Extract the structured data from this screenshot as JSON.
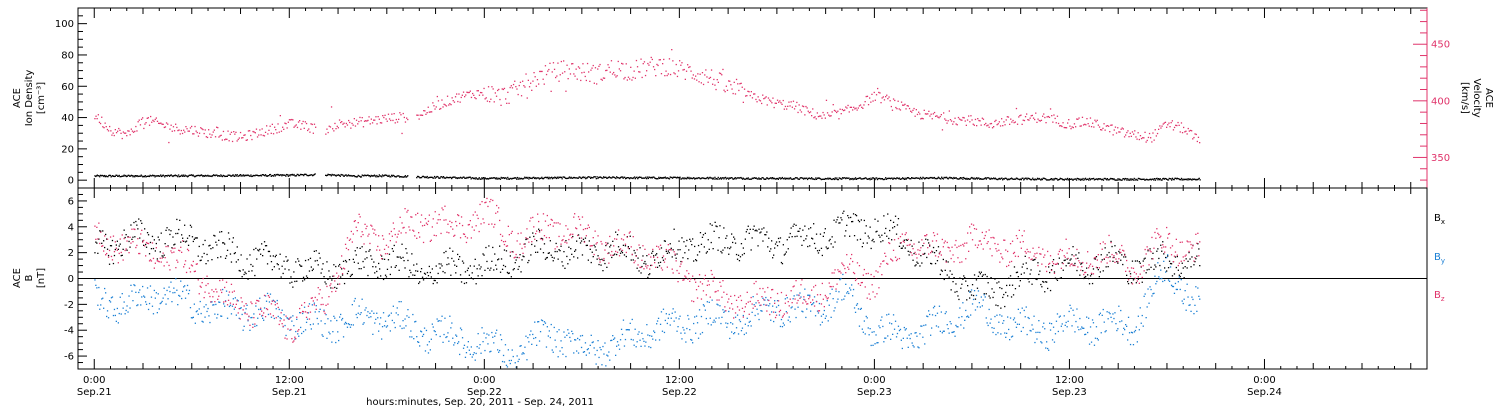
{
  "chart_data": [
    {
      "type": "scatter",
      "panel": "top",
      "left_ylabel": [
        "ACE",
        "Ion Density",
        "[cm⁻³]"
      ],
      "right_ylabel": [
        "ACE",
        "Velocity",
        "[km/s]"
      ],
      "left_ylim": [
        -5,
        110
      ],
      "left_yticks": [
        "0",
        "20",
        "40",
        "60",
        "80",
        "100"
      ],
      "right_ylim": [
        323,
        482
      ],
      "right_yticks": [
        "350",
        "400",
        "450"
      ],
      "series": [
        {
          "axis": "left",
          "color": "#000000",
          "points": [
            [
              0,
              3
            ],
            [
              6,
              3.2
            ],
            [
              12,
              3.5
            ],
            [
              14,
              4.0
            ],
            [
              16,
              3.0
            ],
            [
              18,
              3.2
            ],
            [
              20,
              2.5
            ],
            [
              24,
              1.5
            ],
            [
              30,
              2.0
            ],
            [
              36,
              1.8
            ],
            [
              42,
              1.5
            ],
            [
              48,
              1.3
            ],
            [
              52,
              1.8
            ],
            [
              56,
              1.2
            ],
            [
              60,
              1.0
            ],
            [
              68,
              1.0
            ]
          ]
        },
        {
          "axis": "right",
          "color": "#e0336a",
          "points": [
            [
              0,
              388
            ],
            [
              1,
              375
            ],
            [
              2,
              370
            ],
            [
              3,
              384
            ],
            [
              4,
              380
            ],
            [
              5,
              376
            ],
            [
              6,
              375
            ],
            [
              7,
              372
            ],
            [
              8,
              370
            ],
            [
              9,
              368
            ],
            [
              10,
              372
            ],
            [
              11,
              376
            ],
            [
              12,
              380
            ],
            [
              13,
              378
            ],
            [
              14,
              374
            ],
            [
              15,
              380
            ],
            [
              16,
              381
            ],
            [
              17,
              383
            ],
            [
              18,
              385
            ],
            [
              19,
              386
            ],
            [
              20,
              388
            ],
            [
              21,
              396
            ],
            [
              22,
              402
            ],
            [
              23,
              406
            ],
            [
              24,
              408
            ],
            [
              25,
              404
            ],
            [
              26,
              410
            ],
            [
              27,
              420
            ],
            [
              28,
              425
            ],
            [
              29,
              428
            ],
            [
              30,
              426
            ],
            [
              31,
              424
            ],
            [
              32,
              430
            ],
            [
              33,
              427
            ],
            [
              34,
              430
            ],
            [
              35,
              432
            ],
            [
              36,
              428
            ],
            [
              37,
              425
            ],
            [
              38,
              420
            ],
            [
              39,
              412
            ],
            [
              40,
              406
            ],
            [
              41,
              402
            ],
            [
              42,
              398
            ],
            [
              43,
              396
            ],
            [
              44,
              390
            ],
            [
              45,
              386
            ],
            [
              46,
              390
            ],
            [
              47,
              396
            ],
            [
              48,
              405
            ],
            [
              49,
              400
            ],
            [
              50,
              392
            ],
            [
              51,
              388
            ],
            [
              52,
              386
            ],
            [
              53,
              384
            ],
            [
              54,
              383
            ],
            [
              55,
              380
            ],
            [
              56,
              382
            ],
            [
              57,
              384
            ],
            [
              58,
              386
            ],
            [
              59,
              384
            ],
            [
              60,
              380
            ],
            [
              61,
              382
            ],
            [
              62,
              378
            ],
            [
              63,
              373
            ],
            [
              64,
              370
            ],
            [
              65,
              368
            ],
            [
              66,
              380
            ],
            [
              67,
              376
            ],
            [
              68,
              364
            ]
          ]
        }
      ]
    },
    {
      "type": "scatter",
      "panel": "bottom",
      "left_ylabel": [
        "ACE",
        "B",
        "[nT]"
      ],
      "left_ylim": [
        -7,
        7
      ],
      "left_yticks": [
        "-6",
        "-4",
        "-2",
        "0",
        "2",
        "4",
        "6"
      ],
      "legend": [
        {
          "base": "B",
          "sub": "x",
          "color": "#000000"
        },
        {
          "base": "B",
          "sub": "y",
          "color": "#1a7fd4"
        },
        {
          "base": "B",
          "sub": "z",
          "color": "#e0336a"
        }
      ],
      "legend_position": "right",
      "series": [
        {
          "name": "Bx",
          "color": "#000000",
          "points": [
            [
              0,
              2.5
            ],
            [
              2,
              3.0
            ],
            [
              4,
              3.2
            ],
            [
              6,
              3.0
            ],
            [
              8,
              2.0
            ],
            [
              10,
              1.5
            ],
            [
              12,
              1.0
            ],
            [
              14,
              0.5
            ],
            [
              16,
              1.0
            ],
            [
              18,
              1.5
            ],
            [
              20,
              0.5
            ],
            [
              22,
              0.8
            ],
            [
              24,
              1.0
            ],
            [
              26,
              1.8
            ],
            [
              28,
              2.5
            ],
            [
              30,
              2.0
            ],
            [
              32,
              2.5
            ],
            [
              34,
              1.5
            ],
            [
              36,
              2.5
            ],
            [
              38,
              2.8
            ],
            [
              40,
              3.0
            ],
            [
              42,
              2.8
            ],
            [
              44,
              3.2
            ],
            [
              46,
              3.8
            ],
            [
              48,
              4.0
            ],
            [
              50,
              3.0
            ],
            [
              51,
              2.0
            ],
            [
              52,
              1.0
            ],
            [
              54,
              -1.0
            ],
            [
              56,
              -0.5
            ],
            [
              58,
              0.5
            ],
            [
              60,
              1.0
            ],
            [
              62,
              1.5
            ],
            [
              64,
              1.0
            ],
            [
              66,
              1.5
            ],
            [
              68,
              1.5
            ]
          ]
        },
        {
          "name": "By",
          "color": "#1a7fd4",
          "points": [
            [
              0,
              -1.5
            ],
            [
              2,
              -2.0
            ],
            [
              4,
              -1.0
            ],
            [
              6,
              -2.0
            ],
            [
              8,
              -2.5
            ],
            [
              10,
              -2.5
            ],
            [
              12,
              -3.0
            ],
            [
              14,
              -3.5
            ],
            [
              16,
              -3.0
            ],
            [
              18,
              -3.0
            ],
            [
              20,
              -4.0
            ],
            [
              22,
              -4.5
            ],
            [
              24,
              -5.0
            ],
            [
              26,
              -6.0
            ],
            [
              28,
              -4.0
            ],
            [
              30,
              -5.5
            ],
            [
              32,
              -5.0
            ],
            [
              34,
              -4.0
            ],
            [
              36,
              -3.5
            ],
            [
              38,
              -3.0
            ],
            [
              40,
              -3.2
            ],
            [
              42,
              -2.0
            ],
            [
              44,
              -2.5
            ],
            [
              46,
              -1.0
            ],
            [
              48,
              -4.0
            ],
            [
              50,
              -4.5
            ],
            [
              52,
              -3.5
            ],
            [
              54,
              -2.0
            ],
            [
              56,
              -3.5
            ],
            [
              58,
              -4.0
            ],
            [
              60,
              -3.5
            ],
            [
              62,
              -3.5
            ],
            [
              64,
              -3.5
            ],
            [
              66,
              1.0
            ],
            [
              68,
              -2.5
            ]
          ]
        },
        {
          "name": "Bz",
          "color": "#e0336a",
          "points": [
            [
              0,
              3.5
            ],
            [
              2,
              2.5
            ],
            [
              4,
              2.0
            ],
            [
              6,
              1.0
            ],
            [
              8,
              -1.5
            ],
            [
              10,
              -2.5
            ],
            [
              12,
              -3.5
            ],
            [
              14,
              -2.0
            ],
            [
              16,
              3.5
            ],
            [
              18,
              3.0
            ],
            [
              20,
              4.5
            ],
            [
              22,
              4.0
            ],
            [
              24,
              5.0
            ],
            [
              26,
              3.0
            ],
            [
              28,
              4.0
            ],
            [
              30,
              3.5
            ],
            [
              32,
              2.5
            ],
            [
              34,
              2.0
            ],
            [
              36,
              0.5
            ],
            [
              38,
              -1.0
            ],
            [
              40,
              -2.0
            ],
            [
              42,
              -1.5
            ],
            [
              44,
              -1.5
            ],
            [
              46,
              0.5
            ],
            [
              48,
              0.0
            ],
            [
              50,
              3.0
            ],
            [
              52,
              2.0
            ],
            [
              54,
              3.0
            ],
            [
              56,
              2.5
            ],
            [
              58,
              2.0
            ],
            [
              60,
              1.5
            ],
            [
              62,
              2.0
            ],
            [
              64,
              1.0
            ],
            [
              66,
              3.0
            ],
            [
              68,
              2.0
            ]
          ]
        }
      ]
    }
  ],
  "x_axis": {
    "xlim": [
      -1,
      82
    ],
    "xlabel": "hours:minutes, Sep. 20, 2011 - Sep. 24, 2011",
    "ticks": [
      {
        "x": 0,
        "time": "0:00",
        "date": "Sep.21"
      },
      {
        "x": 12,
        "time": "12:00",
        "date": "Sep.21"
      },
      {
        "x": 24,
        "time": "0:00",
        "date": "Sep.22"
      },
      {
        "x": 36,
        "time": "12:00",
        "date": "Sep.22"
      },
      {
        "x": 48,
        "time": "0:00",
        "date": "Sep.23"
      },
      {
        "x": 60,
        "time": "12:00",
        "date": "Sep.23"
      },
      {
        "x": 72,
        "time": "0:00",
        "date": "Sep.24"
      }
    ]
  }
}
